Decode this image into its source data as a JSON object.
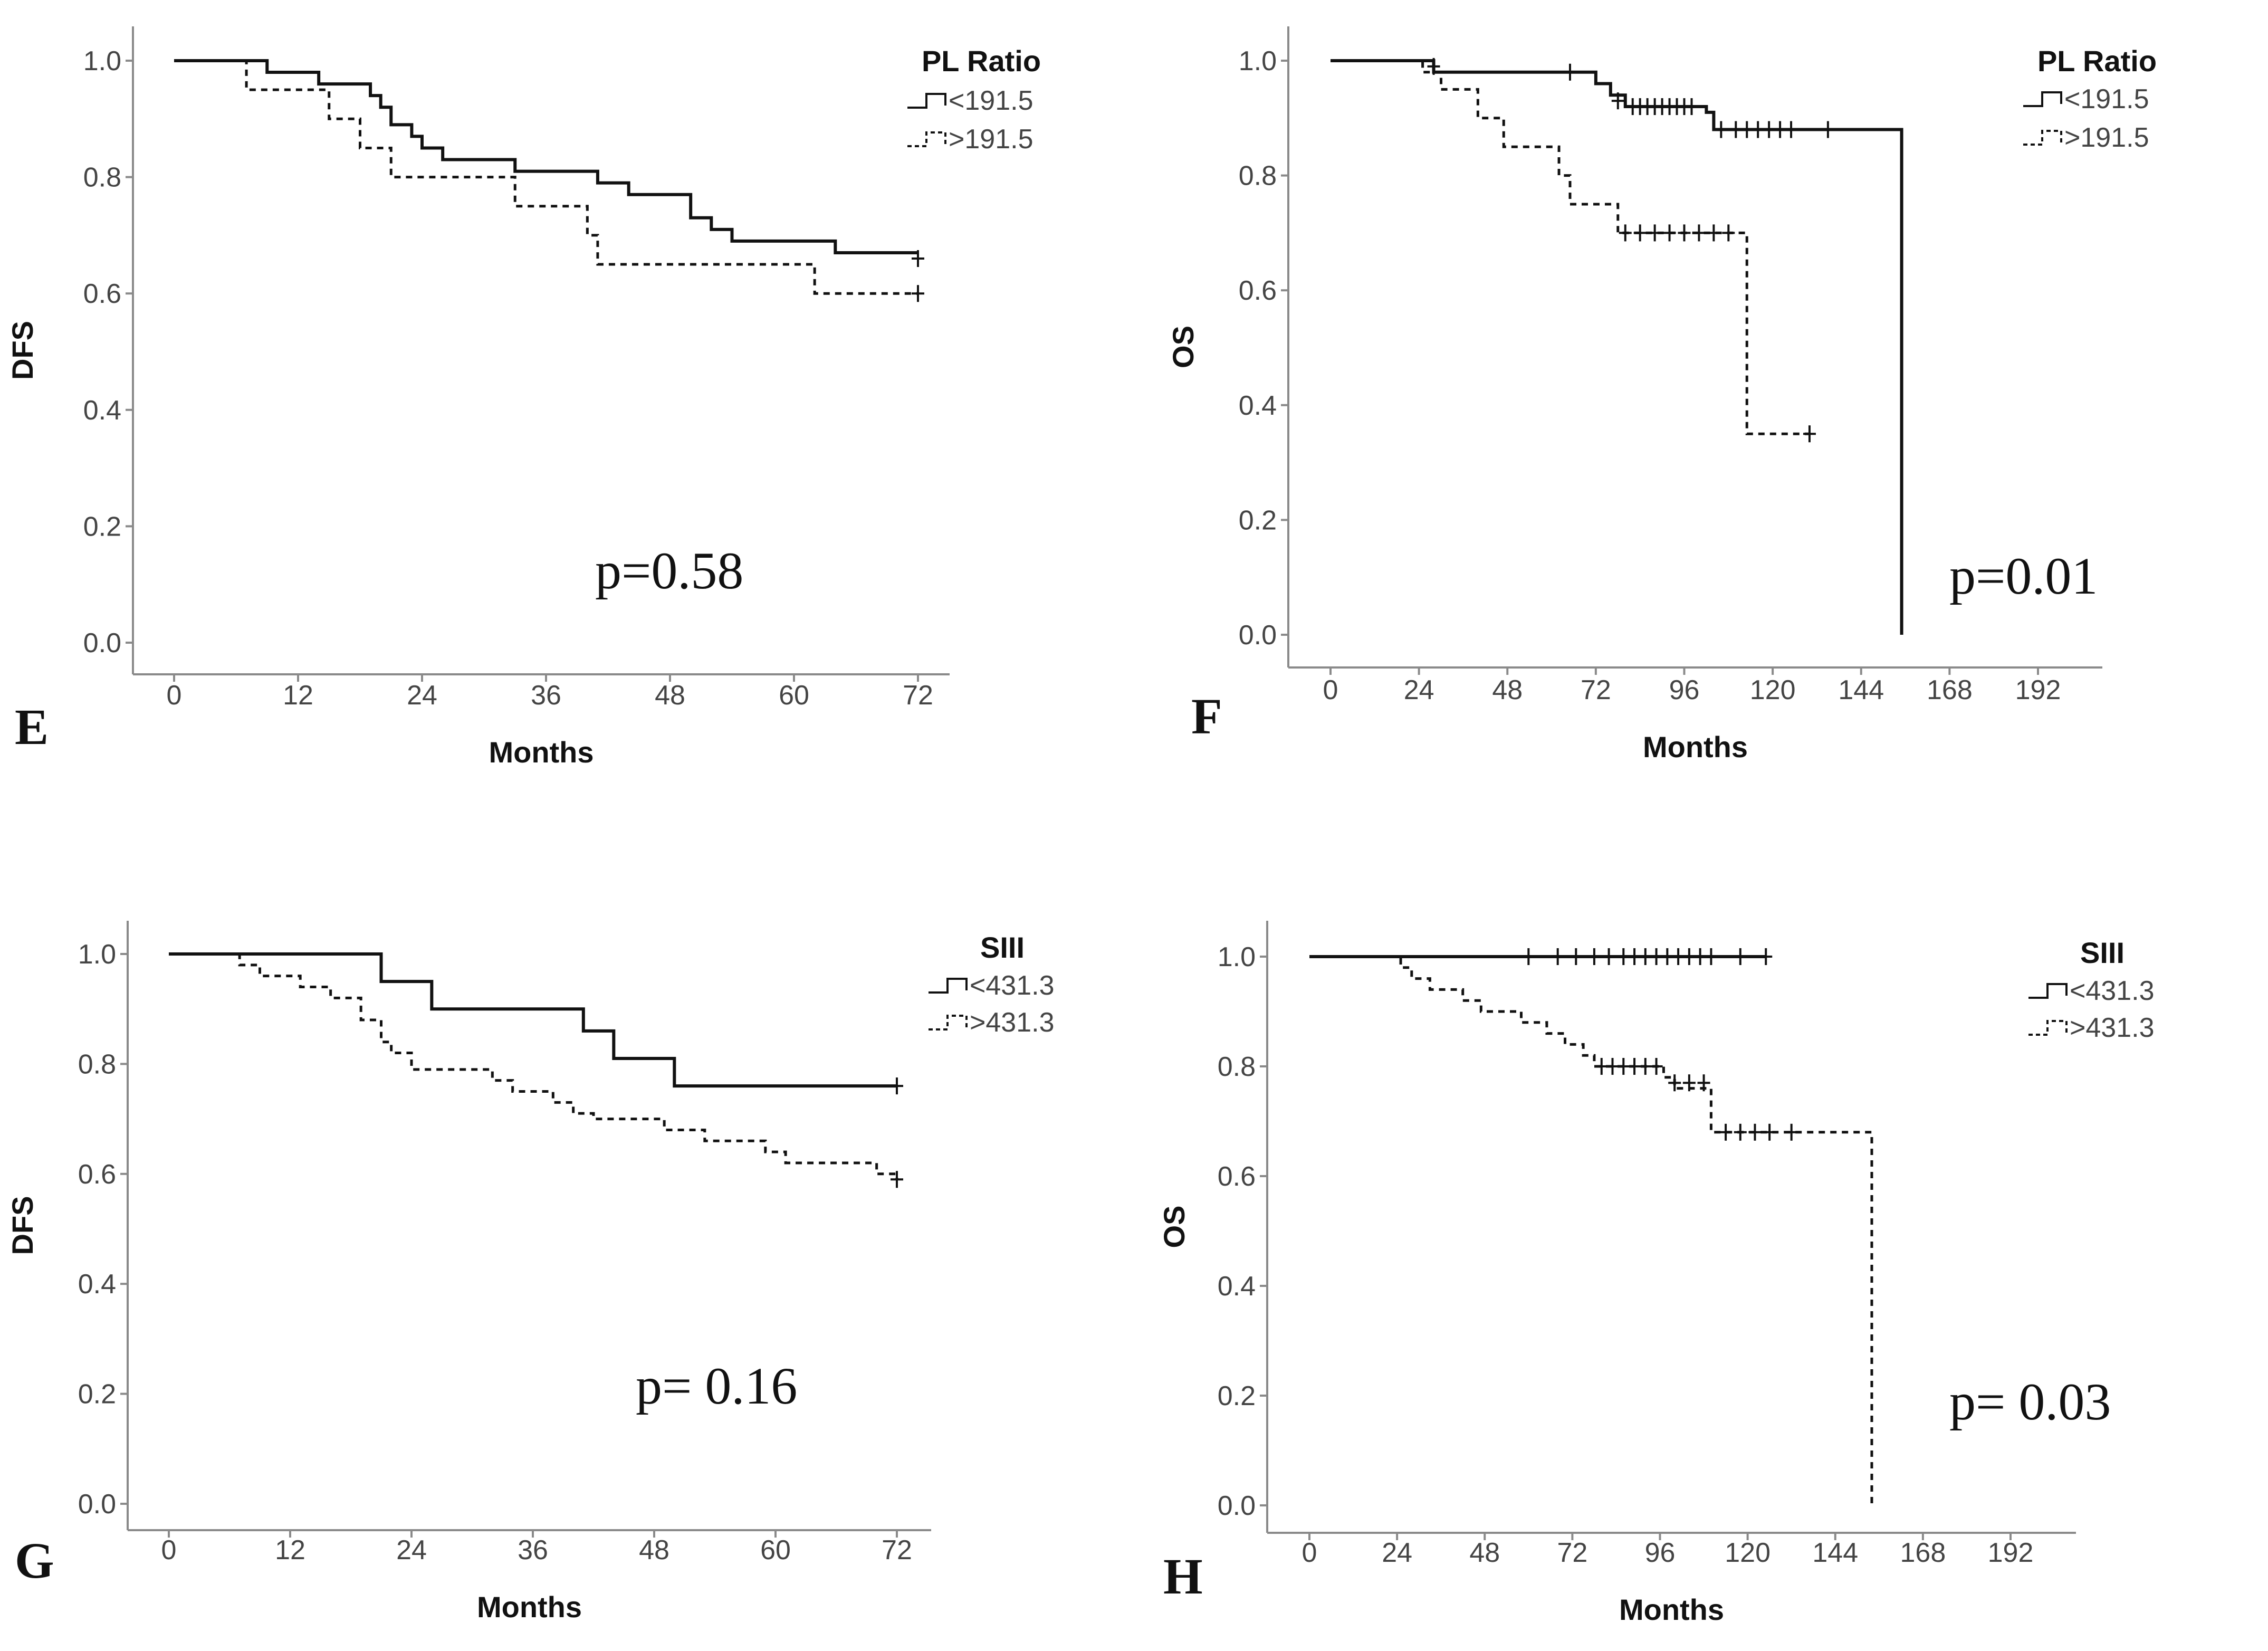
{
  "colors": {
    "line": "#111111",
    "axis": "#8a8a8a",
    "text": "#444444"
  },
  "chart_data": [
    {
      "type": "line",
      "panel": "E",
      "xlabel": "Months",
      "ylabel": "DFS",
      "xlim": [
        0,
        72
      ],
      "ylim": [
        0,
        1
      ],
      "xticks": [
        "0",
        "12",
        "24",
        "36",
        "48",
        "60",
        "72"
      ],
      "yticks": [
        "0.0",
        "0.2",
        "0.4",
        "0.6",
        "0.8",
        "1.0"
      ],
      "legend_title": "PL Ratio",
      "p_value": "p=0.58",
      "series": [
        {
          "name": "<191.5",
          "style": "solid",
          "steps": [
            [
              0,
              1.0
            ],
            [
              9,
              0.98
            ],
            [
              14,
              0.96
            ],
            [
              19,
              0.94
            ],
            [
              20,
              0.92
            ],
            [
              21,
              0.89
            ],
            [
              23,
              0.87
            ],
            [
              24,
              0.85
            ],
            [
              26,
              0.83
            ],
            [
              33,
              0.81
            ],
            [
              41,
              0.79
            ],
            [
              44,
              0.77
            ],
            [
              50,
              0.73
            ],
            [
              52,
              0.71
            ],
            [
              54,
              0.69
            ],
            [
              64,
              0.67
            ],
            [
              72,
              0.67
            ]
          ],
          "censored": [
            [
              72,
              0.66
            ]
          ]
        },
        {
          "name": ">191.5",
          "style": "dashed",
          "steps": [
            [
              0,
              1.0
            ],
            [
              7,
              0.95
            ],
            [
              15,
              0.9
            ],
            [
              18,
              0.85
            ],
            [
              21,
              0.8
            ],
            [
              33,
              0.75
            ],
            [
              40,
              0.7
            ],
            [
              41,
              0.65
            ],
            [
              62,
              0.6
            ],
            [
              72,
              0.6
            ]
          ],
          "censored": [
            [
              72,
              0.6
            ]
          ]
        }
      ]
    },
    {
      "type": "line",
      "panel": "F",
      "xlabel": "Months",
      "ylabel": "OS",
      "xlim": [
        0,
        192
      ],
      "ylim": [
        0,
        1
      ],
      "xticks": [
        "0",
        "24",
        "48",
        "72",
        "96",
        "120",
        "144",
        "168",
        "192"
      ],
      "yticks": [
        "0.0",
        "0.2",
        "0.4",
        "0.6",
        "0.8",
        "1.0"
      ],
      "legend_title": "PL Ratio",
      "p_value": "p=0.01",
      "series": [
        {
          "name": "<191.5",
          "style": "solid",
          "steps": [
            [
              0,
              1.0
            ],
            [
              28,
              0.98
            ],
            [
              70,
              0.98
            ],
            [
              72,
              0.96
            ],
            [
              76,
              0.94
            ],
            [
              80,
              0.92
            ],
            [
              102,
              0.91
            ],
            [
              104,
              0.88
            ],
            [
              155,
              0.88
            ],
            [
              155,
              0.0
            ]
          ],
          "censored": [
            [
              28,
              0.99
            ],
            [
              65,
              0.98
            ],
            [
              78,
              0.93
            ],
            [
              82,
              0.92
            ],
            [
              84,
              0.92
            ],
            [
              86,
              0.92
            ],
            [
              88,
              0.92
            ],
            [
              90,
              0.92
            ],
            [
              92,
              0.92
            ],
            [
              94,
              0.92
            ],
            [
              96,
              0.92
            ],
            [
              98,
              0.92
            ],
            [
              106,
              0.88
            ],
            [
              110,
              0.88
            ],
            [
              113,
              0.88
            ],
            [
              116,
              0.88
            ],
            [
              119,
              0.88
            ],
            [
              122,
              0.88
            ],
            [
              125,
              0.88
            ],
            [
              135,
              0.88
            ]
          ]
        },
        {
          "name": ">191.5",
          "style": "dashed",
          "steps": [
            [
              0,
              1.0
            ],
            [
              25,
              0.98
            ],
            [
              30,
              0.95
            ],
            [
              40,
              0.9
            ],
            [
              47,
              0.85
            ],
            [
              62,
              0.8
            ],
            [
              65,
              0.75
            ],
            [
              78,
              0.7
            ],
            [
              113,
              0.7
            ],
            [
              113,
              0.35
            ],
            [
              130,
              0.35
            ]
          ],
          "censored": [
            [
              80,
              0.7
            ],
            [
              84,
              0.7
            ],
            [
              88,
              0.7
            ],
            [
              92,
              0.7
            ],
            [
              96,
              0.7
            ],
            [
              100,
              0.7
            ],
            [
              104,
              0.7
            ],
            [
              108,
              0.7
            ],
            [
              130,
              0.35
            ]
          ]
        }
      ]
    },
    {
      "type": "line",
      "panel": "G",
      "xlabel": "Months",
      "ylabel": "DFS",
      "xlim": [
        0,
        72
      ],
      "ylim": [
        0,
        1
      ],
      "xticks": [
        "0",
        "12",
        "24",
        "36",
        "48",
        "60",
        "72"
      ],
      "yticks": [
        "0.0",
        "0.2",
        "0.4",
        "0.6",
        "0.8",
        "1.0"
      ],
      "legend_title": "SIII",
      "p_value": "p= 0.16",
      "series": [
        {
          "name": "<431.3",
          "style": "solid",
          "steps": [
            [
              0,
              1.0
            ],
            [
              21,
              0.95
            ],
            [
              26,
              0.9
            ],
            [
              41,
              0.86
            ],
            [
              44,
              0.81
            ],
            [
              50,
              0.76
            ],
            [
              72,
              0.76
            ]
          ],
          "censored": [
            [
              72,
              0.76
            ]
          ]
        },
        {
          "name": ">431.3",
          "style": "dashed",
          "steps": [
            [
              0,
              1.0
            ],
            [
              7,
              0.98
            ],
            [
              9,
              0.96
            ],
            [
              13,
              0.94
            ],
            [
              16,
              0.92
            ],
            [
              19,
              0.88
            ],
            [
              21,
              0.84
            ],
            [
              22,
              0.82
            ],
            [
              24,
              0.79
            ],
            [
              32,
              0.77
            ],
            [
              34,
              0.75
            ],
            [
              38,
              0.73
            ],
            [
              40,
              0.71
            ],
            [
              42,
              0.7
            ],
            [
              49,
              0.68
            ],
            [
              53,
              0.66
            ],
            [
              59,
              0.64
            ],
            [
              61,
              0.62
            ],
            [
              70,
              0.6
            ],
            [
              72,
              0.59
            ]
          ],
          "censored": [
            [
              72,
              0.59
            ]
          ]
        }
      ]
    },
    {
      "type": "line",
      "panel": "H",
      "xlabel": "Months",
      "ylabel": "OS",
      "xlim": [
        0,
        192
      ],
      "ylim": [
        0,
        1
      ],
      "xticks": [
        "0",
        "24",
        "48",
        "72",
        "96",
        "120",
        "144",
        "168",
        "192"
      ],
      "yticks": [
        "0.0",
        "0.2",
        "0.4",
        "0.6",
        "0.8",
        "1.0"
      ],
      "legend_title": "SIII",
      "p_value": "p= 0.03",
      "series": [
        {
          "name": "<431.3",
          "style": "solid",
          "steps": [
            [
              0,
              1.0
            ],
            [
              125,
              1.0
            ]
          ],
          "censored": [
            [
              60,
              1.0
            ],
            [
              68,
              1.0
            ],
            [
              73,
              1.0
            ],
            [
              78,
              1.0
            ],
            [
              82,
              1.0
            ],
            [
              86,
              1.0
            ],
            [
              89,
              1.0
            ],
            [
              92,
              1.0
            ],
            [
              95,
              1.0
            ],
            [
              98,
              1.0
            ],
            [
              101,
              1.0
            ],
            [
              104,
              1.0
            ],
            [
              107,
              1.0
            ],
            [
              110,
              1.0
            ],
            [
              118,
              1.0
            ],
            [
              125,
              1.0
            ]
          ]
        },
        {
          "name": ">431.3",
          "style": "dashed",
          "steps": [
            [
              0,
              1.0
            ],
            [
              25,
              0.98
            ],
            [
              28,
              0.96
            ],
            [
              33,
              0.94
            ],
            [
              42,
              0.92
            ],
            [
              47,
              0.9
            ],
            [
              58,
              0.88
            ],
            [
              65,
              0.86
            ],
            [
              70,
              0.84
            ],
            [
              75,
              0.82
            ],
            [
              78,
              0.8
            ],
            [
              97,
              0.78
            ],
            [
              100,
              0.76
            ],
            [
              105,
              0.76
            ],
            [
              110,
              0.68
            ],
            [
              154,
              0.68
            ],
            [
              154,
              0.0
            ]
          ],
          "censored": [
            [
              80,
              0.8
            ],
            [
              83,
              0.8
            ],
            [
              86,
              0.8
            ],
            [
              89,
              0.8
            ],
            [
              92,
              0.8
            ],
            [
              95,
              0.8
            ],
            [
              100,
              0.77
            ],
            [
              104,
              0.77
            ],
            [
              108,
              0.77
            ],
            [
              114,
              0.68
            ],
            [
              118,
              0.68
            ],
            [
              122,
              0.68
            ],
            [
              126,
              0.68
            ],
            [
              132,
              0.68
            ]
          ]
        }
      ]
    }
  ]
}
